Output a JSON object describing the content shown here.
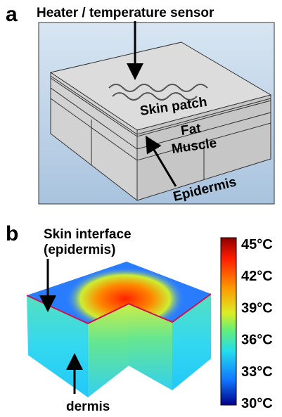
{
  "panel_a": {
    "label": "a",
    "title": "Heater / temperature sensor",
    "layers": [
      "Skin patch",
      "Fat",
      "Muscle",
      "Epidermis"
    ]
  },
  "panel_b": {
    "label": "b",
    "annotation": [
      "Skin interface",
      "(epidermis)"
    ],
    "region": "dermis",
    "colorbar_labels": [
      "45°C",
      "42°C",
      "39°C",
      "36°C",
      "33°C",
      "30°C"
    ]
  }
}
